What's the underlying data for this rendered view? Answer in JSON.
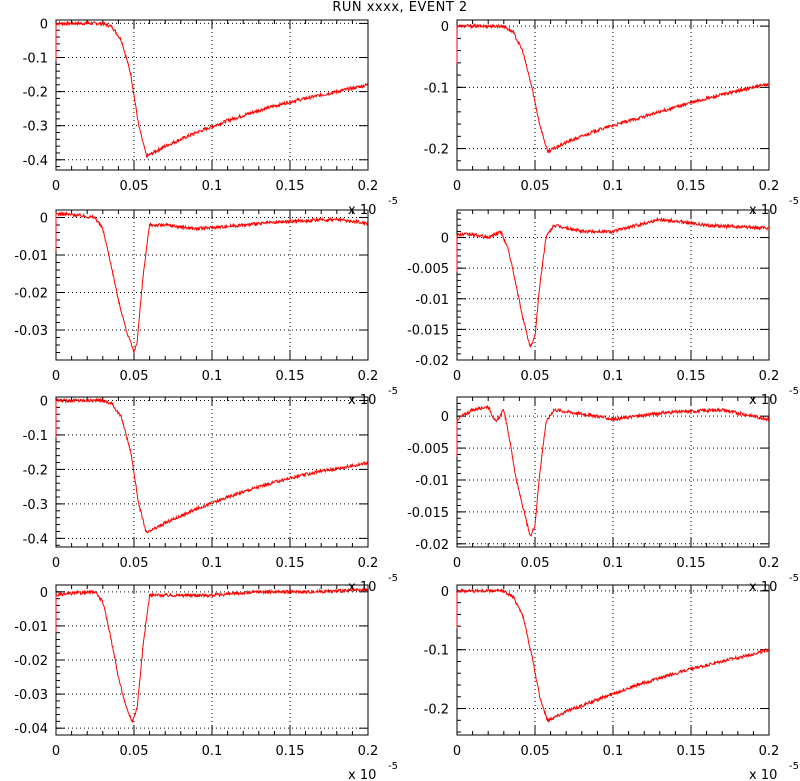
{
  "title": "RUN xxxx, EVENT     2",
  "colors": {
    "trace": "#ff0000",
    "axis": "#000000",
    "grid": "#000000",
    "background": "#ffffff"
  },
  "chart_data": [
    {
      "type": "line",
      "xlim": [
        0,
        0.2
      ],
      "ylim": [
        -0.43,
        0.01
      ],
      "grid": true,
      "x_ticks": [
        "0",
        "0.05",
        "0.1",
        "0.15",
        "0.2"
      ],
      "y_ticks": [
        {
          "value": 0,
          "label": "0"
        },
        {
          "value": -0.1,
          "label": "-0.1"
        },
        {
          "value": -0.2,
          "label": "-0.2"
        },
        {
          "value": -0.3,
          "label": "-0.3"
        },
        {
          "value": -0.4,
          "label": "-0.4"
        }
      ],
      "x_multiplier": {
        "base": "x 10",
        "exponent": "-5"
      },
      "series": [
        {
          "x": [
            0,
            0.02,
            0.03,
            0.036,
            0.042,
            0.048,
            0.053,
            0.058,
            0.07,
            0.09,
            0.11,
            0.13,
            0.15,
            0.17,
            0.19,
            0.2
          ],
          "y": [
            0,
            0,
            0,
            -0.01,
            -0.05,
            -0.15,
            -0.3,
            -0.39,
            -0.36,
            -0.32,
            -0.285,
            -0.255,
            -0.23,
            -0.21,
            -0.19,
            -0.18
          ]
        }
      ]
    },
    {
      "type": "line",
      "xlim": [
        0,
        0.2
      ],
      "ylim": [
        -0.235,
        0.01
      ],
      "grid": true,
      "x_ticks": [
        "0",
        "0.05",
        "0.1",
        "0.15",
        "0.2"
      ],
      "y_ticks": [
        {
          "value": 0,
          "label": "0"
        },
        {
          "value": -0.1,
          "label": "-0.1"
        },
        {
          "value": -0.2,
          "label": "-0.2"
        }
      ],
      "x_multiplier": {
        "base": "x 10",
        "exponent": "-5"
      },
      "series": [
        {
          "x": [
            0,
            0.02,
            0.03,
            0.036,
            0.042,
            0.048,
            0.053,
            0.058,
            0.07,
            0.09,
            0.11,
            0.13,
            0.15,
            0.17,
            0.19,
            0.2
          ],
          "y": [
            0,
            0,
            0,
            -0.01,
            -0.04,
            -0.1,
            -0.16,
            -0.205,
            -0.19,
            -0.17,
            -0.155,
            -0.14,
            -0.125,
            -0.112,
            -0.1,
            -0.095
          ]
        }
      ]
    },
    {
      "type": "line",
      "xlim": [
        0,
        0.2
      ],
      "ylim": [
        -0.038,
        0.002
      ],
      "grid": true,
      "x_ticks": [
        "0",
        "0.05",
        "0.1",
        "0.15",
        "0.2"
      ],
      "y_ticks": [
        {
          "value": 0,
          "label": "0"
        },
        {
          "value": -0.01,
          "label": "-0.01"
        },
        {
          "value": -0.02,
          "label": "-0.02"
        },
        {
          "value": -0.03,
          "label": "-0.03"
        }
      ],
      "x_multiplier": {
        "base": "x 10",
        "exponent": "-5"
      },
      "series": [
        {
          "x": [
            0,
            0.01,
            0.025,
            0.03,
            0.035,
            0.04,
            0.045,
            0.05,
            0.052,
            0.056,
            0.06,
            0.07,
            0.09,
            0.12,
            0.15,
            0.18,
            0.2
          ],
          "y": [
            0.001,
            0.0008,
            0,
            -0.003,
            -0.012,
            -0.022,
            -0.03,
            -0.036,
            -0.033,
            -0.015,
            -0.002,
            -0.002,
            -0.003,
            -0.002,
            -0.001,
            -0.0005,
            -0.0015
          ]
        }
      ]
    },
    {
      "type": "line",
      "xlim": [
        0,
        0.2
      ],
      "ylim": [
        -0.02,
        0.0045
      ],
      "grid": true,
      "x_ticks": [
        "0",
        "0.05",
        "0.1",
        "0.15",
        "0.2"
      ],
      "y_ticks": [
        {
          "value": 0,
          "label": "0"
        },
        {
          "value": -0.005,
          "label": "-0.005"
        },
        {
          "value": -0.01,
          "label": "-0.01"
        },
        {
          "value": -0.015,
          "label": "-0.015"
        },
        {
          "value": -0.02,
          "label": "-0.02"
        }
      ],
      "x_multiplier": {
        "base": "x 10",
        "exponent": "-5"
      },
      "series": [
        {
          "x": [
            0,
            0.01,
            0.02,
            0.028,
            0.033,
            0.038,
            0.043,
            0.047,
            0.05,
            0.053,
            0.057,
            0.062,
            0.08,
            0.1,
            0.13,
            0.16,
            0.2
          ],
          "y": [
            0.0005,
            0.0005,
            0,
            0.001,
            -0.002,
            -0.008,
            -0.014,
            -0.018,
            -0.016,
            -0.008,
            0,
            0.002,
            0.001,
            0.001,
            0.003,
            0.002,
            0.0015
          ]
        }
      ]
    },
    {
      "type": "line",
      "xlim": [
        0,
        0.2
      ],
      "ylim": [
        -0.425,
        0.01
      ],
      "grid": true,
      "x_ticks": [
        "0",
        "0.05",
        "0.1",
        "0.15",
        "0.2"
      ],
      "y_ticks": [
        {
          "value": 0,
          "label": "0"
        },
        {
          "value": -0.1,
          "label": "-0.1"
        },
        {
          "value": -0.2,
          "label": "-0.2"
        },
        {
          "value": -0.3,
          "label": "-0.3"
        },
        {
          "value": -0.4,
          "label": "-0.4"
        }
      ],
      "x_multiplier": {
        "base": "x 10",
        "exponent": "-5"
      },
      "series": [
        {
          "x": [
            0,
            0.02,
            0.03,
            0.036,
            0.042,
            0.048,
            0.053,
            0.058,
            0.07,
            0.09,
            0.11,
            0.13,
            0.15,
            0.17,
            0.19,
            0.2
          ],
          "y": [
            0,
            0,
            0,
            -0.01,
            -0.05,
            -0.15,
            -0.3,
            -0.385,
            -0.355,
            -0.315,
            -0.28,
            -0.25,
            -0.225,
            -0.205,
            -0.19,
            -0.18
          ]
        }
      ]
    },
    {
      "type": "line",
      "xlim": [
        0,
        0.2
      ],
      "ylim": [
        -0.0205,
        0.003
      ],
      "grid": true,
      "x_ticks": [
        "0",
        "0.05",
        "0.1",
        "0.15",
        "0.2"
      ],
      "y_ticks": [
        {
          "value": 0,
          "label": "0"
        },
        {
          "value": -0.005,
          "label": "-0.005"
        },
        {
          "value": -0.01,
          "label": "-0.01"
        },
        {
          "value": -0.015,
          "label": "-0.015"
        },
        {
          "value": -0.02,
          "label": "-0.02"
        }
      ],
      "x_multiplier": {
        "base": "x 10",
        "exponent": "-5"
      },
      "series": [
        {
          "x": [
            0,
            0.01,
            0.02,
            0.025,
            0.03,
            0.034,
            0.038,
            0.043,
            0.047,
            0.05,
            0.053,
            0.057,
            0.062,
            0.09,
            0.1,
            0.13,
            0.17,
            0.2
          ],
          "y": [
            -0.0005,
            0.001,
            0.0015,
            -0.001,
            0.001,
            -0.004,
            -0.01,
            -0.015,
            -0.019,
            -0.017,
            -0.009,
            -0.001,
            0.001,
            0,
            -0.0005,
            0.0005,
            0.001,
            -0.0005
          ]
        }
      ]
    },
    {
      "type": "line",
      "xlim": [
        0,
        0.2
      ],
      "ylim": [
        -0.042,
        0.002
      ],
      "grid": true,
      "x_ticks": [
        "0",
        "0.05",
        "0.1",
        "0.15",
        "0.2"
      ],
      "y_ticks": [
        {
          "value": 0,
          "label": "0"
        },
        {
          "value": -0.01,
          "label": "-0.01"
        },
        {
          "value": -0.02,
          "label": "-0.02"
        },
        {
          "value": -0.03,
          "label": "-0.03"
        },
        {
          "value": -0.04,
          "label": "-0.04"
        }
      ],
      "x_multiplier": {
        "base": "x 10",
        "exponent": "-5"
      },
      "series": [
        {
          "x": [
            0,
            0.01,
            0.025,
            0.03,
            0.035,
            0.04,
            0.045,
            0.049,
            0.052,
            0.056,
            0.06,
            0.08,
            0.1,
            0.13,
            0.16,
            0.2
          ],
          "y": [
            -0.001,
            -0.0005,
            0,
            -0.003,
            -0.013,
            -0.025,
            -0.034,
            -0.038,
            -0.034,
            -0.015,
            -0.001,
            -0.001,
            -0.001,
            0,
            0,
            0.0005
          ]
        }
      ]
    },
    {
      "type": "line",
      "xlim": [
        0,
        0.2
      ],
      "ylim": [
        -0.245,
        0.01
      ],
      "grid": true,
      "x_ticks": [
        "0",
        "0.05",
        "0.1",
        "0.15",
        "0.2"
      ],
      "y_ticks": [
        {
          "value": 0,
          "label": "0"
        },
        {
          "value": -0.1,
          "label": "-0.1"
        },
        {
          "value": -0.2,
          "label": "-0.2"
        }
      ],
      "x_multiplier": {
        "base": "x 10",
        "exponent": "-5"
      },
      "series": [
        {
          "x": [
            0,
            0.02,
            0.03,
            0.036,
            0.042,
            0.048,
            0.053,
            0.058,
            0.07,
            0.09,
            0.11,
            0.13,
            0.15,
            0.17,
            0.19,
            0.2
          ],
          "y": [
            0,
            0,
            0,
            -0.01,
            -0.04,
            -0.11,
            -0.18,
            -0.22,
            -0.205,
            -0.185,
            -0.165,
            -0.148,
            -0.133,
            -0.12,
            -0.107,
            -0.1
          ]
        }
      ]
    }
  ]
}
